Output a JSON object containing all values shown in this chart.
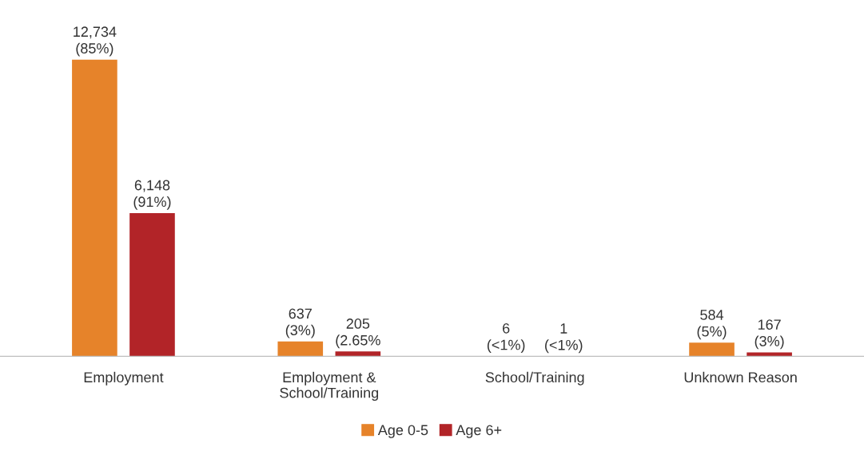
{
  "chart_data": {
    "type": "bar",
    "categories": [
      "Employment",
      "Employment &\nSchool/Training",
      "School/Training",
      "Unknown Reason"
    ],
    "series": [
      {
        "name": "Age 0-5",
        "color": "#e6832a",
        "values": [
          12734,
          637,
          6,
          584
        ],
        "value_labels": [
          "12,734\n(85%)",
          "637\n(3%)",
          "6\n(<1%)",
          "584\n(5%)"
        ]
      },
      {
        "name": "Age 6+",
        "color": "#b22428",
        "values": [
          6148,
          205,
          1,
          167
        ],
        "value_labels": [
          "6,148\n(91%)",
          "205\n(2.65%",
          "1\n(<1%)",
          "167\n(3%)"
        ]
      }
    ],
    "legend": "bottom",
    "grid": false
  }
}
